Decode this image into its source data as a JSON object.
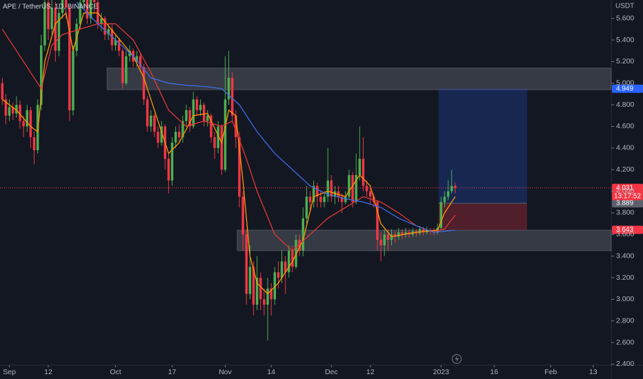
{
  "chart_data": {
    "type": "candlestick",
    "title": "APE / TetherUS, 1D, BINANCE",
    "currency": "USDT",
    "up_color": "#4caf50",
    "down_color": "#f23645",
    "xlim": [
      -2.65,
      170.1
    ],
    "ylim": [
      2.39,
      5.77
    ],
    "xticks": [
      {
        "value": 0,
        "label": "Sep"
      },
      {
        "value": 11,
        "label": "12"
      },
      {
        "value": 30,
        "label": "Oct"
      },
      {
        "value": 46,
        "label": "17"
      },
      {
        "value": 61,
        "label": "Nov"
      },
      {
        "value": 74,
        "label": "14"
      },
      {
        "value": 91,
        "label": "Dec"
      },
      {
        "value": 102,
        "label": "12"
      },
      {
        "value": 122,
        "label": "2023"
      },
      {
        "value": 137,
        "label": "16"
      },
      {
        "value": 153,
        "label": "Feb"
      },
      {
        "value": 165,
        "label": "13"
      }
    ],
    "yticks": [
      {
        "value": 2.4,
        "label": "2.400"
      },
      {
        "value": 2.6,
        "label": "2.600"
      },
      {
        "value": 2.8,
        "label": "2.800"
      },
      {
        "value": 3.0,
        "label": "3.000"
      },
      {
        "value": 3.2,
        "label": "3.200"
      },
      {
        "value": 3.4,
        "label": "3.400"
      },
      {
        "value": 3.6,
        "label": "3.600"
      },
      {
        "value": 3.8,
        "label": "3.800"
      },
      {
        "value": 4.0,
        "label": "4.000"
      },
      {
        "value": 4.2,
        "label": "4.200"
      },
      {
        "value": 4.4,
        "label": "4.400"
      },
      {
        "value": 4.6,
        "label": "4.600"
      },
      {
        "value": 4.8,
        "label": "4.800"
      },
      {
        "value": 5.0,
        "label": "5.000"
      },
      {
        "value": 5.2,
        "label": "5.200"
      },
      {
        "value": 5.4,
        "label": "5.400"
      },
      {
        "value": 5.6,
        "label": "5.600"
      }
    ],
    "x": [
      -2,
      -1,
      0,
      1,
      2,
      3,
      4,
      5,
      6,
      7,
      8,
      9,
      10,
      11,
      12,
      13,
      14,
      15,
      16,
      17,
      18,
      19,
      20,
      21,
      22,
      23,
      24,
      25,
      26,
      27,
      28,
      29,
      30,
      31,
      32,
      33,
      34,
      35,
      36,
      37,
      38,
      39,
      40,
      41,
      42,
      43,
      44,
      45,
      46,
      47,
      48,
      49,
      50,
      51,
      52,
      53,
      54,
      55,
      56,
      57,
      58,
      59,
      60,
      61,
      62,
      63,
      64,
      65,
      66,
      67,
      68,
      69,
      70,
      71,
      72,
      73,
      74,
      75,
      76,
      77,
      78,
      79,
      80,
      81,
      82,
      83,
      84,
      85,
      86,
      87,
      88,
      89,
      90,
      91,
      92,
      93,
      94,
      95,
      96,
      97,
      98,
      99,
      100,
      101,
      102,
      103,
      104,
      105,
      106,
      107,
      108,
      109,
      110,
      111,
      112,
      113,
      114,
      115,
      116,
      117,
      118,
      119,
      120,
      121,
      122,
      123,
      124,
      125,
      126
    ],
    "open": [
      5.0,
      4.85,
      4.7,
      4.78,
      4.72,
      4.8,
      4.65,
      4.6,
      4.75,
      4.5,
      4.38,
      4.8,
      5.35,
      5.75,
      5.5,
      5.7,
      5.3,
      5.65,
      5.8,
      5.7,
      4.75,
      5.3,
      5.55,
      5.75,
      5.85,
      5.6,
      5.8,
      5.75,
      5.55,
      5.6,
      5.45,
      5.5,
      5.35,
      5.4,
      5.3,
      5.0,
      5.25,
      5.3,
      5.2,
      5.25,
      5.15,
      4.85,
      4.6,
      4.7,
      4.55,
      4.45,
      4.6,
      4.3,
      4.1,
      4.45,
      4.55,
      4.5,
      4.65,
      4.75,
      4.6,
      4.85,
      4.75,
      4.8,
      4.65,
      4.7,
      4.5,
      4.4,
      4.6,
      4.2,
      4.85,
      5.05,
      4.7,
      4.5,
      3.95,
      3.6,
      3.05,
      3.3,
      2.95,
      3.2,
      3.0,
      2.95,
      3.1,
      3.0,
      3.25,
      3.2,
      3.35,
      3.25,
      3.45,
      3.3,
      3.55,
      3.45,
      3.75,
      3.95,
      3.9,
      4.05,
      3.95,
      3.9,
      3.95,
      4.1,
      3.95,
      4.0,
      3.95,
      3.9,
      3.95,
      4.15,
      3.9,
      4.15,
      4.3,
      4.05,
      4.0,
      3.95,
      3.9,
      3.55,
      3.5,
      3.6,
      3.55,
      3.6,
      3.58,
      3.62,
      3.6,
      3.62,
      3.6,
      3.63,
      3.61,
      3.65,
      3.62,
      3.64,
      3.63,
      3.62,
      3.66,
      3.9,
      3.95,
      4.0,
      4.05
    ],
    "high": [
      5.05,
      4.9,
      4.85,
      4.82,
      4.88,
      4.84,
      4.7,
      4.8,
      4.78,
      4.55,
      4.85,
      5.45,
      5.95,
      5.8,
      5.85,
      5.75,
      5.7,
      5.95,
      5.9,
      5.72,
      5.35,
      5.6,
      5.9,
      5.95,
      5.9,
      5.85,
      5.85,
      5.78,
      5.65,
      5.62,
      5.55,
      5.55,
      5.45,
      5.42,
      5.32,
      5.3,
      5.35,
      5.32,
      5.3,
      5.28,
      5.18,
      4.88,
      4.75,
      4.72,
      4.6,
      4.65,
      4.62,
      4.35,
      4.5,
      4.6,
      4.62,
      4.7,
      4.8,
      4.78,
      4.92,
      4.88,
      4.85,
      4.82,
      4.75,
      4.72,
      4.55,
      4.65,
      4.62,
      5.25,
      5.3,
      5.1,
      4.75,
      4.55,
      4.0,
      3.65,
      3.5,
      3.35,
      3.4,
      3.25,
      3.1,
      3.2,
      3.15,
      3.3,
      3.35,
      3.45,
      3.4,
      3.5,
      3.5,
      3.6,
      3.6,
      3.85,
      4.05,
      4.0,
      4.1,
      4.08,
      4.0,
      4.0,
      4.4,
      4.15,
      4.05,
      4.05,
      3.98,
      4.0,
      4.2,
      4.18,
      4.35,
      4.6,
      4.5,
      4.1,
      4.05,
      3.98,
      3.92,
      3.62,
      3.65,
      3.65,
      3.65,
      3.63,
      3.66,
      3.65,
      3.66,
      3.65,
      3.66,
      3.65,
      3.68,
      3.67,
      3.67,
      3.66,
      3.66,
      3.7,
      3.95,
      4.0,
      4.1,
      4.2,
      4.08
    ],
    "low": [
      4.8,
      4.62,
      4.65,
      4.66,
      4.68,
      4.58,
      4.5,
      4.55,
      4.4,
      4.25,
      4.35,
      4.75,
      5.3,
      5.4,
      5.45,
      5.2,
      5.25,
      5.6,
      5.6,
      4.65,
      4.7,
      5.25,
      5.5,
      5.7,
      5.55,
      5.55,
      5.65,
      5.5,
      5.48,
      5.4,
      5.4,
      5.3,
      5.3,
      5.25,
      4.95,
      4.98,
      5.2,
      5.15,
      5.15,
      5.1,
      4.8,
      4.55,
      4.55,
      4.5,
      4.4,
      4.42,
      4.2,
      3.98,
      4.05,
      4.4,
      4.45,
      4.45,
      4.6,
      4.55,
      4.58,
      4.7,
      4.7,
      4.6,
      4.6,
      4.45,
      4.3,
      4.35,
      4.15,
      4.18,
      4.8,
      4.65,
      4.4,
      3.85,
      3.45,
      2.95,
      3.0,
      2.85,
      2.9,
      2.9,
      2.85,
      2.62,
      2.85,
      2.95,
      3.1,
      3.15,
      3.05,
      3.2,
      3.25,
      3.28,
      3.4,
      3.4,
      3.7,
      3.8,
      3.85,
      3.85,
      3.85,
      3.85,
      3.9,
      3.9,
      3.88,
      3.9,
      3.8,
      3.88,
      3.92,
      3.85,
      3.88,
      4.1,
      4.0,
      3.95,
      3.88,
      3.85,
      3.45,
      3.35,
      3.4,
      3.45,
      3.5,
      3.52,
      3.55,
      3.56,
      3.57,
      3.57,
      3.58,
      3.58,
      3.59,
      3.59,
      3.6,
      3.6,
      3.59,
      3.6,
      3.64,
      3.85,
      3.92,
      3.98,
      3.98
    ],
    "close": [
      4.85,
      4.7,
      4.78,
      4.72,
      4.8,
      4.65,
      4.6,
      4.75,
      4.5,
      4.38,
      4.8,
      5.35,
      5.75,
      5.5,
      5.7,
      5.3,
      5.65,
      5.8,
      5.7,
      4.75,
      5.3,
      5.55,
      5.75,
      5.85,
      5.6,
      5.8,
      5.75,
      5.55,
      5.6,
      5.45,
      5.5,
      5.35,
      5.4,
      5.3,
      5.0,
      5.25,
      5.3,
      5.2,
      5.25,
      5.15,
      4.85,
      4.6,
      4.7,
      4.55,
      4.45,
      4.6,
      4.3,
      4.1,
      4.45,
      4.55,
      4.5,
      4.65,
      4.75,
      4.6,
      4.85,
      4.75,
      4.8,
      4.65,
      4.7,
      4.5,
      4.4,
      4.6,
      4.2,
      4.85,
      5.05,
      4.7,
      4.5,
      3.95,
      3.6,
      3.05,
      3.3,
      2.95,
      3.2,
      3.0,
      2.95,
      3.1,
      3.0,
      3.25,
      3.2,
      3.35,
      3.25,
      3.45,
      3.3,
      3.55,
      3.45,
      3.75,
      3.95,
      3.9,
      4.05,
      3.95,
      3.9,
      3.95,
      4.1,
      3.95,
      4.0,
      3.95,
      3.9,
      3.95,
      4.15,
      3.9,
      4.15,
      4.3,
      4.05,
      4.0,
      3.95,
      3.9,
      3.55,
      3.5,
      3.6,
      3.55,
      3.6,
      3.58,
      3.62,
      3.6,
      3.62,
      3.6,
      3.63,
      3.61,
      3.65,
      3.62,
      3.64,
      3.63,
      3.62,
      3.66,
      3.9,
      3.95,
      4.0,
      4.05,
      4.031
    ],
    "countdown": "13:17:52",
    "lines": [
      {
        "color": "#ff9800",
        "x": [
          -2,
          2,
          6,
          8,
          10,
          13,
          16,
          18,
          21,
          25,
          30,
          35,
          38,
          42,
          45,
          48,
          52,
          56,
          60,
          62,
          64,
          66,
          68,
          70,
          73,
          76,
          80,
          83,
          86,
          90,
          95,
          99,
          102,
          105,
          108,
          115,
          121,
          123,
          126
        ],
        "values": [
          4.85,
          4.75,
          4.6,
          4.55,
          5.2,
          5.55,
          5.65,
          5.3,
          5.65,
          5.65,
          5.45,
          5.25,
          5.05,
          4.65,
          4.35,
          4.45,
          4.7,
          4.72,
          4.45,
          4.75,
          4.7,
          4.1,
          3.4,
          3.15,
          3.05,
          3.15,
          3.35,
          3.55,
          3.95,
          4.0,
          3.95,
          4.15,
          4.05,
          3.7,
          3.58,
          3.62,
          3.64,
          3.8,
          3.95
        ]
      },
      {
        "color": "#e53935",
        "x": [
          -2,
          5,
          9,
          12,
          15,
          20,
          25,
          30,
          35,
          40,
          45,
          50,
          55,
          60,
          63,
          67,
          70,
          75,
          80,
          85,
          90,
          95,
          100,
          105,
          110,
          115,
          120,
          123,
          126
        ],
        "values": [
          5.5,
          5.15,
          4.95,
          5.35,
          5.45,
          5.5,
          5.55,
          5.55,
          5.4,
          5.1,
          4.75,
          4.6,
          4.65,
          4.6,
          4.65,
          4.3,
          4.0,
          3.6,
          3.45,
          3.6,
          3.75,
          3.85,
          3.95,
          3.9,
          3.8,
          3.68,
          3.62,
          3.65,
          3.78
        ]
      },
      {
        "color": "#3d6ee8",
        "x": [
          19,
          25,
          30,
          35,
          40,
          45,
          50,
          55,
          60,
          65,
          70,
          75,
          80,
          85,
          90,
          95,
          100,
          105,
          110,
          115,
          120,
          126
        ],
        "values": [
          5.75,
          5.55,
          5.4,
          5.25,
          5.05,
          5.0,
          4.98,
          4.97,
          4.95,
          4.8,
          4.55,
          4.35,
          4.2,
          4.05,
          3.97,
          3.93,
          3.9,
          3.85,
          3.75,
          3.68,
          3.62,
          3.64
        ]
      }
    ],
    "zones": [
      {
        "x": [
          27.6,
          170.1
        ],
        "y": [
          4.94,
          5.14
        ]
      },
      {
        "x": [
          64.4,
          170.1
        ],
        "y": [
          3.45,
          3.64
        ]
      }
    ],
    "position": {
      "x": [
        121.3,
        146.3
      ],
      "entry": 3.889,
      "target": 4.949,
      "stop": 3.643,
      "entry_color": "#5d606b",
      "target_color": "#2962ff",
      "stop_color": "#f23645"
    }
  }
}
